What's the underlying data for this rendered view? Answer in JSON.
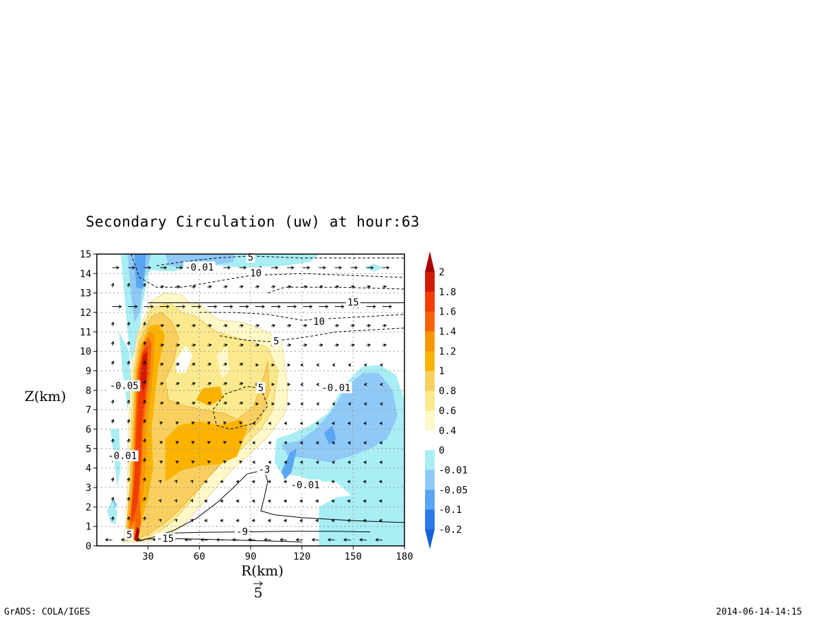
{
  "chart_data": {
    "type": "contour",
    "title": "Secondary Circulation (uw) at hour:63",
    "xlabel": "R(km)",
    "ylabel": "Z(km)",
    "xlim": [
      0,
      180
    ],
    "ylim": [
      0,
      15
    ],
    "x_ticks": [
      "30",
      "60",
      "90",
      "120",
      "150",
      "180"
    ],
    "y_ticks": [
      "0",
      "1",
      "2",
      "3",
      "4",
      "5",
      "6",
      "7",
      "8",
      "9",
      "10",
      "11",
      "12",
      "13",
      "14",
      "15"
    ],
    "grid": true,
    "shaded_field": "w (vertical velocity)",
    "colorbar": {
      "levels": [
        "2",
        "1.8",
        "1.6",
        "1.4",
        "1.2",
        "1",
        "0.8",
        "0.6",
        "0.4",
        "0",
        "-0.01",
        "-0.05",
        "-0.1",
        "-0.2"
      ],
      "colors": [
        "#aa0000",
        "#d11a00",
        "#f23c00",
        "#fa6400",
        "#fb9600",
        "#fbb300",
        "#f9d060",
        "#fbe98e",
        "#fff8c8",
        "#ffffff",
        "#a8eef4",
        "#90c9f6",
        "#5aa5f1",
        "#2c7ae8",
        "#1462d8"
      ]
    },
    "contour_labels": [
      {
        "label": "-0.01",
        "x": 60,
        "y": 14.3
      },
      {
        "label": "5",
        "x": 90,
        "y": 14.8
      },
      {
        "label": "10",
        "x": 93,
        "y": 14.0
      },
      {
        "label": "15",
        "x": 150,
        "y": 12.5
      },
      {
        "label": "10",
        "x": 130,
        "y": 11.5
      },
      {
        "label": "5",
        "x": 105,
        "y": 10.5
      },
      {
        "label": "-0.05",
        "x": 16,
        "y": 8.2
      },
      {
        "label": "5",
        "x": 96,
        "y": 8.1
      },
      {
        "label": "-0.01",
        "x": 140,
        "y": 8.1
      },
      {
        "label": "-0.01",
        "x": 15,
        "y": 4.6
      },
      {
        "label": "-3",
        "x": 98,
        "y": 3.9
      },
      {
        "label": "-0.01",
        "x": 122,
        "y": 3.1
      },
      {
        "label": "-9",
        "x": 85,
        "y": 0.7
      },
      {
        "label": "5",
        "x": 19,
        "y": 0.55
      },
      {
        "label": "-15",
        "x": 40,
        "y": 0.35
      }
    ],
    "vector_scale_label": "5"
  },
  "footer": {
    "left": "GrADS: COLA/IGES",
    "right": "2014-06-14-14:15"
  }
}
